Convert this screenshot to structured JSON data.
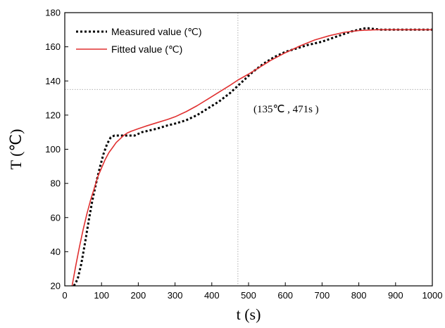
{
  "chart_data": {
    "type": "line",
    "xlabel": "t (s)",
    "ylabel": "T (℃)",
    "xlim": [
      0,
      1000
    ],
    "ylim": [
      20,
      180
    ],
    "xticks": [
      0,
      100,
      200,
      300,
      400,
      500,
      600,
      700,
      800,
      900,
      1000
    ],
    "yticks": [
      20,
      40,
      60,
      80,
      100,
      120,
      140,
      160,
      180
    ],
    "grid": false,
    "legend_position": "top-left",
    "colors": {
      "measured": "#000000",
      "fitted": "#e03030",
      "reference": "#b0b0b0"
    },
    "series": [
      {
        "name": "Measured value (℃)",
        "style": "dotted",
        "x": [
          25,
          35,
          45,
          55,
          65,
          75,
          85,
          95,
          105,
          115,
          125,
          135,
          150,
          170,
          190,
          210,
          230,
          250,
          280,
          300,
          330,
          360,
          390,
          420,
          450,
          480,
          510,
          540,
          570,
          600,
          630,
          660,
          700,
          740,
          780,
          800,
          820,
          840,
          860,
          900,
          950,
          1000
        ],
        "y": [
          20,
          24,
          33,
          45,
          58,
          70,
          80,
          89,
          97,
          103,
          107,
          108,
          108,
          108,
          108,
          110,
          111,
          112,
          114,
          115,
          117,
          120,
          124,
          128,
          133,
          139,
          145,
          150,
          154,
          157,
          159,
          161,
          163,
          166,
          169,
          170,
          171,
          170.5,
          170,
          170,
          170,
          170
        ]
      },
      {
        "name": "Fitted value (℃)",
        "style": "solid",
        "x": [
          20,
          30,
          40,
          50,
          60,
          70,
          80,
          90,
          100,
          110,
          120,
          130,
          140,
          150,
          160,
          170,
          180,
          200,
          220,
          250,
          280,
          300,
          330,
          360,
          390,
          420,
          450,
          471,
          500,
          530,
          560,
          600,
          640,
          680,
          720,
          760,
          800,
          850,
          900,
          950,
          1000
        ],
        "y": [
          20,
          32,
          43,
          53,
          62,
          70,
          77,
          84,
          89,
          94,
          98,
          101,
          104,
          106,
          108,
          109.5,
          110.5,
          112,
          113.5,
          115.5,
          117.5,
          119,
          122,
          125.5,
          129.5,
          133.5,
          137.5,
          140.5,
          144,
          148,
          152,
          156.5,
          160.5,
          164,
          166.5,
          168.5,
          169.5,
          170,
          170,
          170,
          170
        ]
      }
    ],
    "reference": {
      "x": 471,
      "y": 135
    },
    "annotation": "(135℃ , 471s )"
  }
}
